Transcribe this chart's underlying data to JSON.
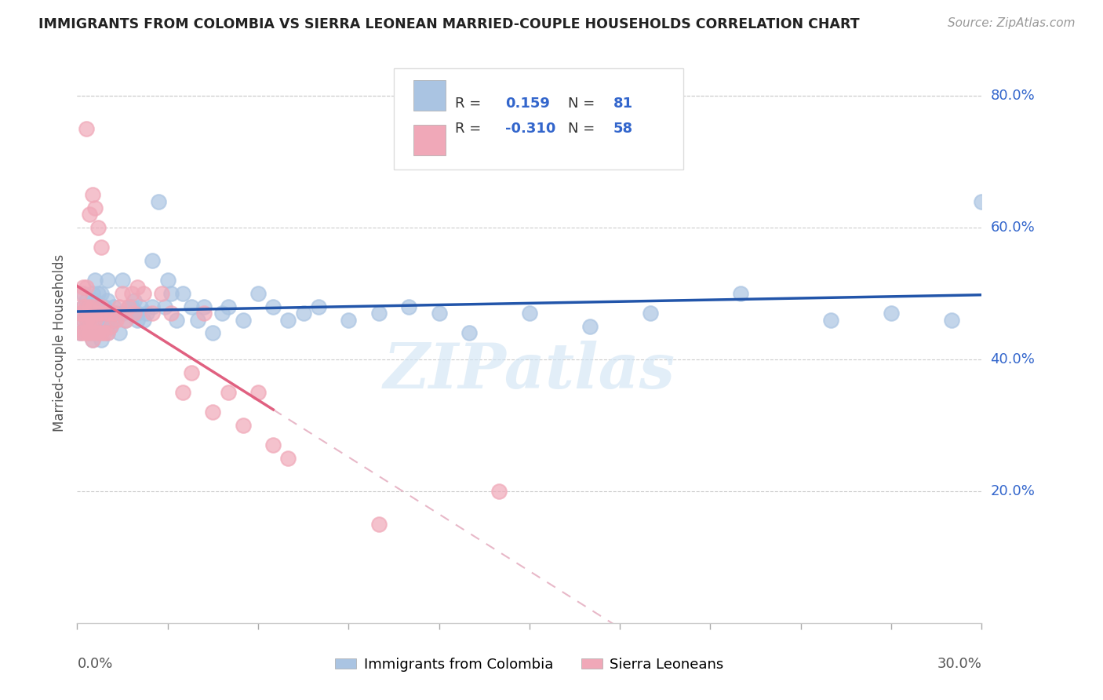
{
  "title": "IMMIGRANTS FROM COLOMBIA VS SIERRA LEONEAN MARRIED-COUPLE HOUSEHOLDS CORRELATION CHART",
  "source": "Source: ZipAtlas.com",
  "ylabel": "Married-couple Households",
  "legend_label1": "Immigrants from Colombia",
  "legend_label2": "Sierra Leoneans",
  "R_colombia": 0.159,
  "N_colombia": 81,
  "R_sierra": -0.31,
  "N_sierra": 58,
  "colombia_color": "#aac4e2",
  "sierra_color": "#f0a8b8",
  "colombia_line_color": "#2255aa",
  "sierra_line_color": "#e06080",
  "dashed_line_color": "#e8b8c8",
  "watermark": "ZIPatlas",
  "xlim": [
    0.0,
    0.3
  ],
  "ylim": [
    0.0,
    0.85
  ],
  "background_color": "#ffffff",
  "grid_color": "#cccccc",
  "right_axis_color": "#3366cc",
  "colombia_scatter_x": [
    0.001,
    0.001,
    0.002,
    0.002,
    0.002,
    0.003,
    0.003,
    0.003,
    0.004,
    0.004,
    0.004,
    0.005,
    0.005,
    0.005,
    0.006,
    0.006,
    0.006,
    0.007,
    0.007,
    0.007,
    0.008,
    0.008,
    0.008,
    0.009,
    0.009,
    0.01,
    0.01,
    0.01,
    0.011,
    0.012,
    0.013,
    0.014,
    0.015,
    0.016,
    0.017,
    0.018,
    0.019,
    0.02,
    0.021,
    0.022,
    0.023,
    0.025,
    0.027,
    0.029,
    0.031,
    0.033,
    0.035,
    0.038,
    0.04,
    0.042,
    0.045,
    0.048,
    0.05,
    0.055,
    0.06,
    0.065,
    0.07,
    0.075,
    0.08,
    0.09,
    0.1,
    0.11,
    0.12,
    0.13,
    0.15,
    0.17,
    0.19,
    0.22,
    0.25,
    0.27,
    0.29,
    0.3,
    0.006,
    0.008,
    0.01,
    0.012,
    0.015,
    0.018,
    0.02,
    0.025,
    0.03
  ],
  "colombia_scatter_y": [
    0.44,
    0.47,
    0.46,
    0.48,
    0.5,
    0.45,
    0.47,
    0.49,
    0.44,
    0.46,
    0.48,
    0.43,
    0.47,
    0.5,
    0.44,
    0.46,
    0.49,
    0.44,
    0.47,
    0.5,
    0.43,
    0.46,
    0.48,
    0.45,
    0.48,
    0.44,
    0.46,
    0.49,
    0.45,
    0.46,
    0.47,
    0.44,
    0.47,
    0.46,
    0.48,
    0.47,
    0.49,
    0.47,
    0.48,
    0.46,
    0.47,
    0.55,
    0.64,
    0.48,
    0.5,
    0.46,
    0.5,
    0.48,
    0.46,
    0.48,
    0.44,
    0.47,
    0.48,
    0.46,
    0.5,
    0.48,
    0.46,
    0.47,
    0.48,
    0.46,
    0.47,
    0.48,
    0.47,
    0.44,
    0.47,
    0.45,
    0.47,
    0.5,
    0.46,
    0.47,
    0.46,
    0.64,
    0.52,
    0.5,
    0.52,
    0.48,
    0.52,
    0.48,
    0.46,
    0.48,
    0.52
  ],
  "sierra_scatter_x": [
    0.001,
    0.001,
    0.001,
    0.002,
    0.002,
    0.002,
    0.002,
    0.003,
    0.003,
    0.003,
    0.003,
    0.003,
    0.004,
    0.004,
    0.004,
    0.004,
    0.005,
    0.005,
    0.005,
    0.005,
    0.006,
    0.006,
    0.006,
    0.007,
    0.007,
    0.007,
    0.008,
    0.008,
    0.008,
    0.009,
    0.009,
    0.01,
    0.01,
    0.011,
    0.012,
    0.013,
    0.014,
    0.015,
    0.016,
    0.017,
    0.018,
    0.019,
    0.02,
    0.022,
    0.025,
    0.028,
    0.031,
    0.035,
    0.038,
    0.042,
    0.045,
    0.05,
    0.055,
    0.06,
    0.065,
    0.07,
    0.1,
    0.14
  ],
  "sierra_scatter_y": [
    0.44,
    0.47,
    0.5,
    0.44,
    0.46,
    0.48,
    0.51,
    0.44,
    0.46,
    0.48,
    0.51,
    0.75,
    0.44,
    0.46,
    0.48,
    0.62,
    0.43,
    0.46,
    0.48,
    0.65,
    0.44,
    0.46,
    0.63,
    0.44,
    0.47,
    0.6,
    0.44,
    0.48,
    0.57,
    0.44,
    0.47,
    0.44,
    0.47,
    0.45,
    0.47,
    0.46,
    0.48,
    0.5,
    0.46,
    0.48,
    0.5,
    0.47,
    0.51,
    0.5,
    0.47,
    0.5,
    0.47,
    0.35,
    0.38,
    0.47,
    0.32,
    0.35,
    0.3,
    0.35,
    0.27,
    0.25,
    0.15,
    0.2
  ]
}
